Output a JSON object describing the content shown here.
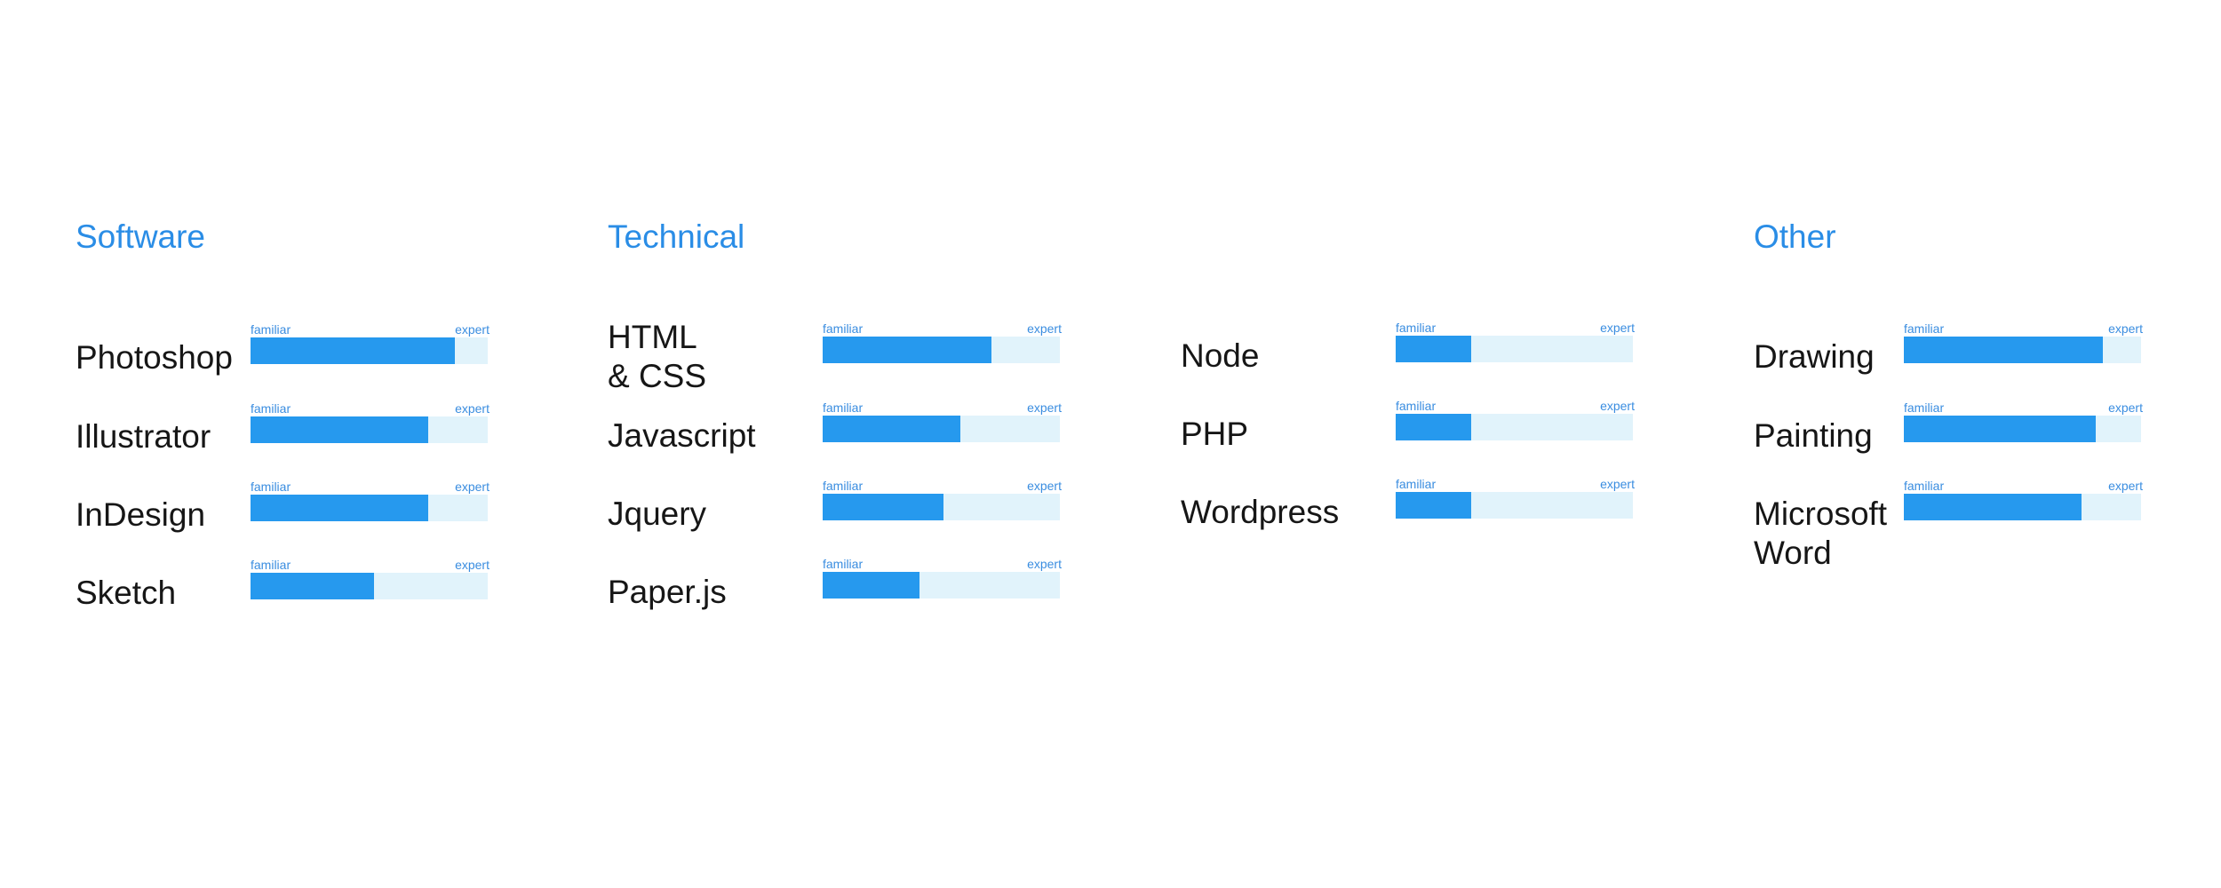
{
  "scale": {
    "low_label": "familiar",
    "high_label": "expert"
  },
  "colors": {
    "heading": "#2a8de6",
    "bar_fill": "#2699ee",
    "bar_track": "#e1f3fb",
    "text": "#161616"
  },
  "sections": [
    {
      "title": "Software",
      "skills": [
        {
          "line1": "Photoshop",
          "line2": "",
          "level": 0.86
        },
        {
          "line1": "Illustrator",
          "line2": "",
          "level": 0.75
        },
        {
          "line1": "InDesign",
          "line2": "",
          "level": 0.75
        },
        {
          "line1": "Sketch",
          "line2": "",
          "level": 0.52
        }
      ]
    },
    {
      "title": "Technical",
      "skills": [
        {
          "line1": "HTML",
          "line2": "& CSS",
          "level": 0.71
        },
        {
          "line1": "Javascript",
          "line2": "",
          "level": 0.58
        },
        {
          "line1": "Jquery",
          "line2": "",
          "level": 0.51
        },
        {
          "line1": "Paper.js",
          "line2": "",
          "level": 0.41
        }
      ]
    },
    {
      "title": "",
      "skills": [
        {
          "line1": "Node",
          "line2": "",
          "level": 0.32
        },
        {
          "line1": "PHP",
          "line2": "",
          "level": 0.32
        },
        {
          "line1": "Wordpress",
          "line2": "",
          "level": 0.32
        }
      ]
    },
    {
      "title": "Other",
      "skills": [
        {
          "line1": "Drawing",
          "line2": "",
          "level": 0.84
        },
        {
          "line1": "Painting",
          "line2": "",
          "level": 0.81
        },
        {
          "line1": "Microsoft",
          "line2": "Word",
          "level": 0.75
        }
      ]
    }
  ]
}
